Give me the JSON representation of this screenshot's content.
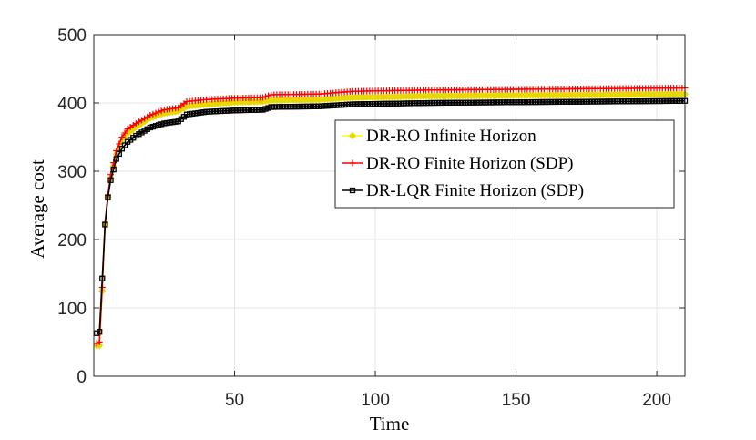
{
  "chart_data": {
    "type": "line",
    "title": "",
    "xlabel": "Time",
    "ylabel": "Average cost",
    "xlim": [
      0,
      210
    ],
    "ylim": [
      0,
      500
    ],
    "xticks": [
      50,
      100,
      150,
      200
    ],
    "yticks": [
      0,
      100,
      200,
      300,
      400,
      500
    ],
    "grid": true,
    "legend_position": "center-right",
    "series": [
      {
        "name": "DR-RO Infinite Horizon",
        "color": "#ffff00",
        "marker_color": "#e6d800",
        "marker": "diamond",
        "x": [
          1,
          2,
          3,
          4,
          5,
          6,
          8,
          10,
          12,
          15,
          20,
          25,
          30,
          33,
          40,
          50,
          60,
          63,
          80,
          92,
          120,
          150,
          180,
          210
        ],
        "y": [
          45,
          45,
          125,
          222,
          262,
          290,
          325,
          343,
          355,
          365,
          378,
          385,
          388,
          395,
          398,
          401,
          402,
          404,
          405,
          408,
          410,
          411,
          412,
          413
        ]
      },
      {
        "name": "DR-RO Finite Horizon (SDP)",
        "color": "#ff0000",
        "marker_color": "#ff0000",
        "marker": "plus",
        "x": [
          1,
          2,
          3,
          4,
          5,
          6,
          8,
          10,
          12,
          15,
          20,
          25,
          30,
          33,
          40,
          50,
          60,
          63,
          80,
          92,
          120,
          150,
          180,
          210
        ],
        "y": [
          48,
          50,
          130,
          225,
          265,
          295,
          330,
          350,
          362,
          370,
          382,
          390,
          393,
          402,
          405,
          407,
          408,
          412,
          413,
          417,
          419,
          420,
          421,
          422
        ]
      },
      {
        "name": "DR-LQR Finite Horizon (SDP)",
        "color": "#000000",
        "marker_color": "#000000",
        "marker": "square",
        "x": [
          1,
          2,
          3,
          4,
          5,
          6,
          8,
          10,
          12,
          15,
          20,
          25,
          30,
          33,
          40,
          50,
          60,
          63,
          80,
          92,
          120,
          150,
          180,
          210
        ],
        "y": [
          63,
          65,
          143,
          222,
          262,
          287,
          318,
          333,
          343,
          352,
          364,
          370,
          373,
          383,
          387,
          389,
          390,
          394,
          395,
          398,
          400,
          401,
          402,
          403
        ]
      }
    ]
  }
}
